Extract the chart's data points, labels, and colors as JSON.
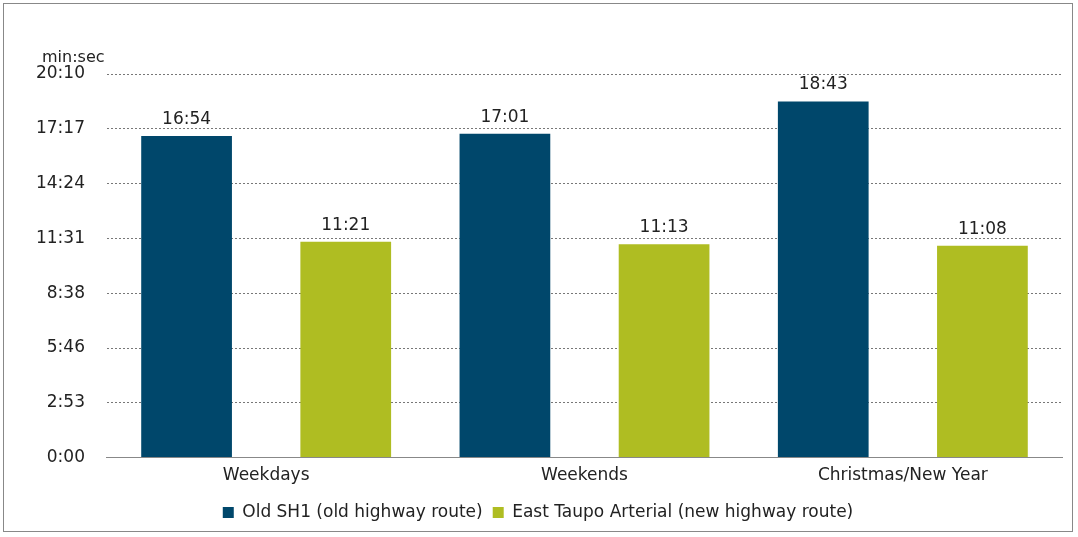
{
  "chart_data": {
    "type": "bar",
    "ylabel": "min:sec",
    "categories": [
      "Weekdays",
      "Weekends",
      "Christmas/New Year"
    ],
    "series": [
      {
        "name": "Old SH1 (old highway route)",
        "color": "#00476b",
        "values": [
          1014,
          1021,
          1123
        ],
        "value_labels": [
          "16:54",
          "17:01",
          "18:43"
        ]
      },
      {
        "name": "East Taupo Arterial (new highway route)",
        "color": "#afbd22",
        "values": [
          681,
          673,
          668
        ],
        "value_labels": [
          "11:21",
          "11:13",
          "11:08"
        ]
      }
    ],
    "ylim": [
      0,
      1209.6
    ],
    "yticks": [
      {
        "value": 0,
        "label": "0:00"
      },
      {
        "value": 172.8,
        "label": "2:53"
      },
      {
        "value": 345.6,
        "label": "5:46"
      },
      {
        "value": 518.4,
        "label": "8:38"
      },
      {
        "value": 691.2,
        "label": "11:31"
      },
      {
        "value": 864,
        "label": "14:24"
      },
      {
        "value": 1036.8,
        "label": "17:17"
      },
      {
        "value": 1209.6,
        "label": "20:10"
      }
    ],
    "grid": "y",
    "legend": "bottom"
  }
}
